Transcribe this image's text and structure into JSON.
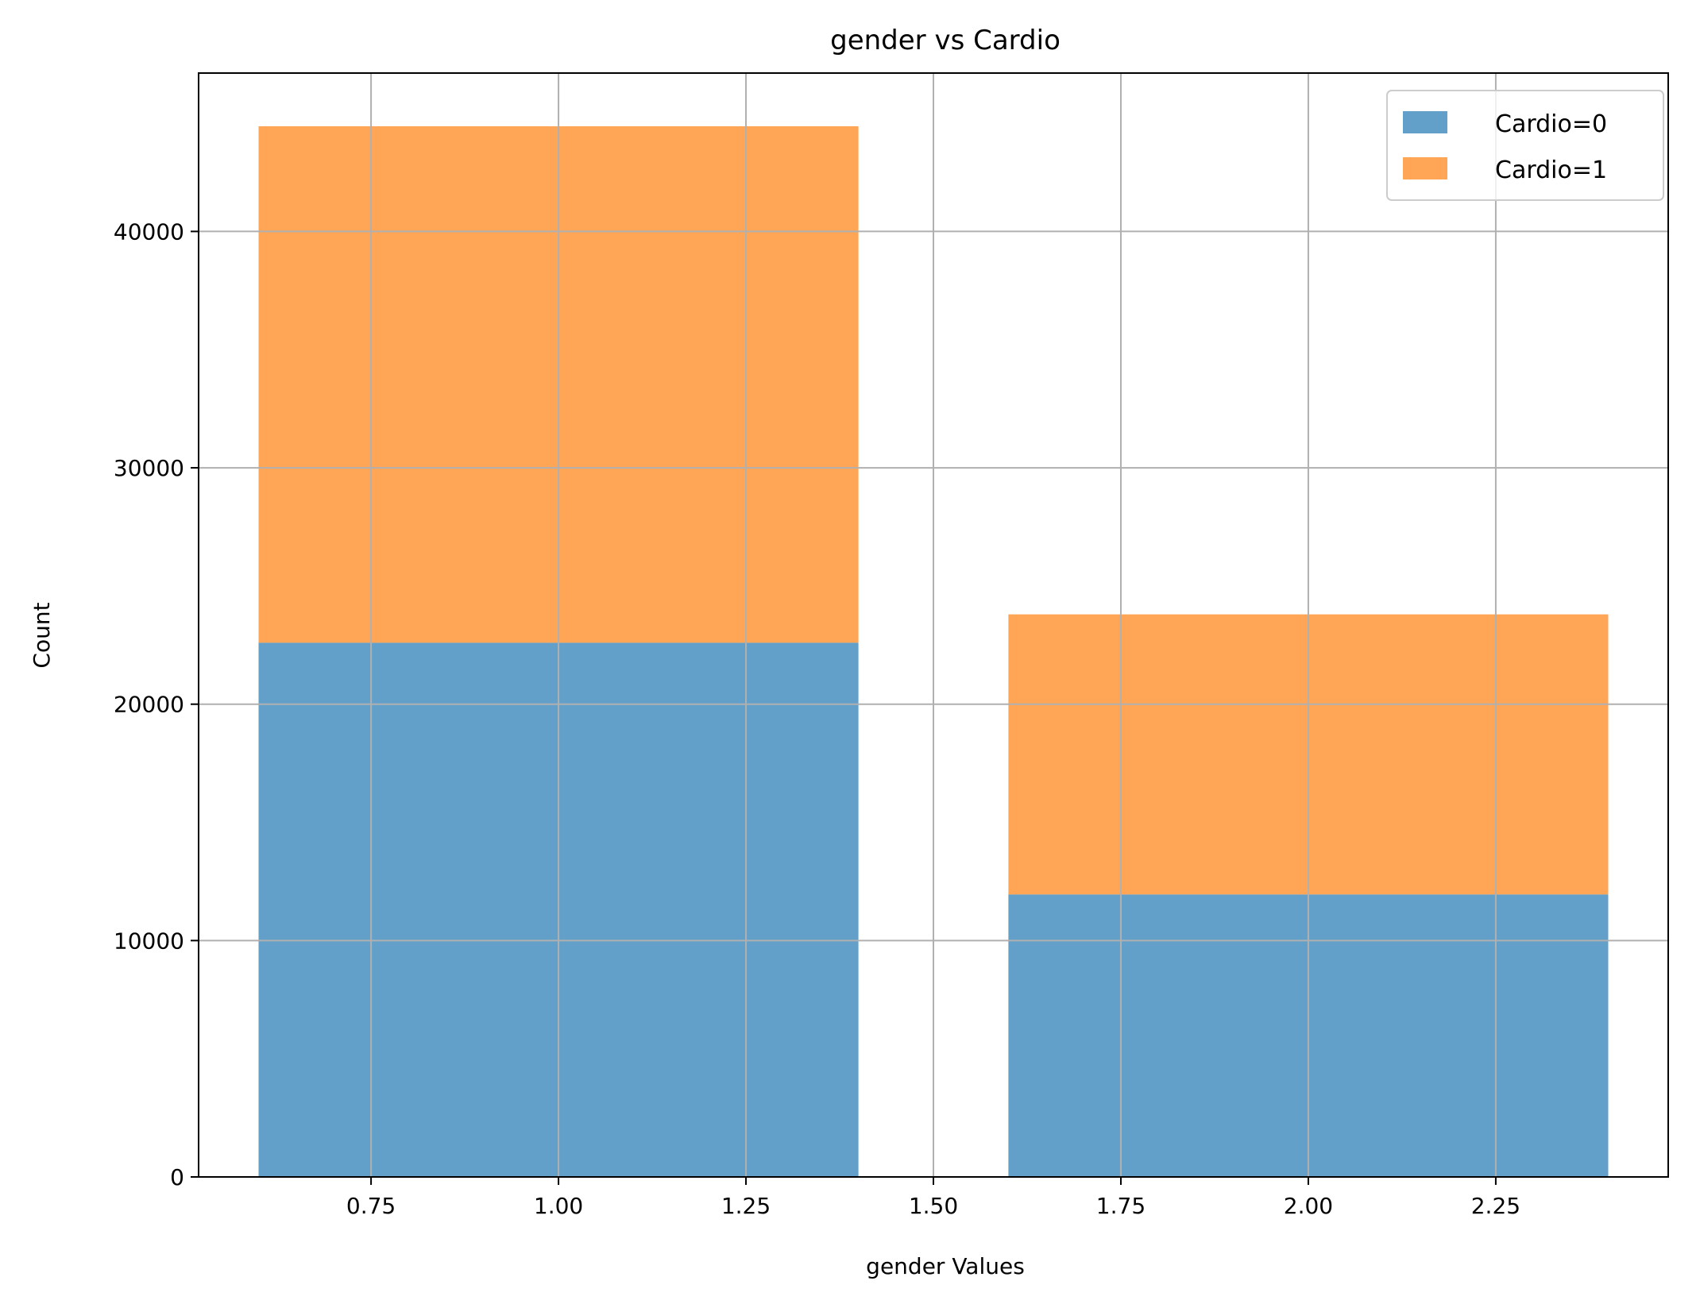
{
  "chart_data": {
    "type": "bar",
    "stacked": true,
    "title": "gender vs Cardio",
    "xlabel": "gender Values",
    "ylabel": "Count",
    "categories_x": [
      1,
      2
    ],
    "bar_width": 0.8,
    "series": [
      {
        "name": "Cardio=0",
        "color": "#1f77b4",
        "values": [
          22600,
          11950
        ]
      },
      {
        "name": "Cardio=1",
        "color": "#ff7f0e",
        "values": [
          21850,
          11850
        ]
      }
    ],
    "xlim": [
      0.52,
      2.48
    ],
    "ylim": [
      0,
      46700
    ],
    "xticks": [
      0.75,
      1.0,
      1.25,
      1.5,
      1.75,
      2.0,
      2.25
    ],
    "xtick_labels": [
      "0.75",
      "1.00",
      "1.25",
      "1.50",
      "1.75",
      "2.00",
      "2.25"
    ],
    "yticks": [
      0,
      10000,
      20000,
      30000,
      40000
    ],
    "ytick_labels": [
      "0",
      "10000",
      "20000",
      "30000",
      "40000"
    ],
    "grid": true,
    "legend_position": "top-right"
  }
}
